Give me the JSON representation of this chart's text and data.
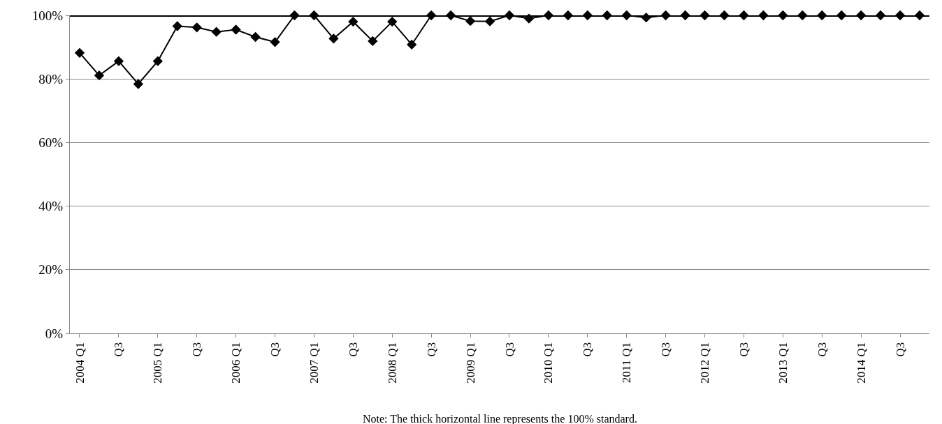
{
  "chart_data": {
    "type": "line",
    "categories": [
      "2004 Q1",
      null,
      "Q3",
      null,
      "2005 Q1",
      null,
      "Q3",
      null,
      "2006 Q1",
      null,
      "Q3",
      null,
      "2007 Q1",
      null,
      "Q3",
      null,
      "2008 Q1",
      null,
      "Q3",
      null,
      "2009 Q1",
      null,
      "Q3",
      null,
      "2010 Q1",
      null,
      "Q3",
      null,
      "2011 Q1",
      null,
      "Q3",
      null,
      "2012 Q1",
      null,
      "Q3",
      null,
      "2013 Q1",
      null,
      "Q3",
      null,
      "2014 Q1",
      null,
      "Q3",
      null
    ],
    "series": [
      {
        "color": "#000000",
        "values": [
          88.2,
          81.1,
          85.6,
          78.4,
          85.6,
          96.6,
          96.2,
          94.8,
          95.5,
          93.2,
          91.6,
          100,
          100,
          92.7,
          98,
          91.9,
          98,
          90.8,
          100,
          100,
          98.2,
          98.1,
          100,
          99,
          100,
          100,
          100,
          100,
          100,
          99.3,
          100,
          100,
          100,
          100,
          100,
          100,
          100,
          100,
          100,
          100,
          100,
          100,
          100,
          100
        ]
      }
    ],
    "ylim": [
      0,
      100
    ],
    "yticks": [
      {
        "value": 0,
        "label": "0%"
      },
      {
        "value": 20,
        "label": "20%"
      },
      {
        "value": 40,
        "label": "40%"
      },
      {
        "value": 60,
        "label": "60%"
      },
      {
        "value": 80,
        "label": "80%"
      },
      {
        "value": 100,
        "label": "100%"
      }
    ],
    "grid": "y",
    "marker": "diamond",
    "line_style": "solid",
    "legend": false,
    "ref_lines": [
      {
        "axis": "y",
        "value": 100,
        "color": "#000000",
        "line_style": "solid"
      }
    ],
    "annotations": [
      "Note: The thick horizontal line represents the 100% standard."
    ]
  }
}
